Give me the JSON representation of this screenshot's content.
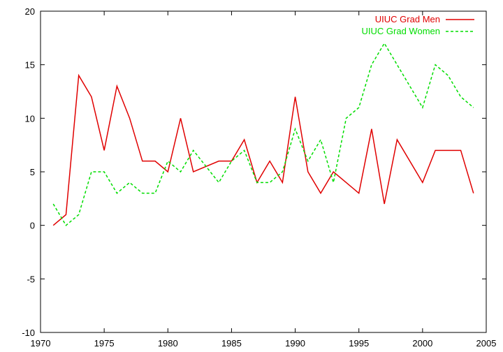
{
  "chart_data": {
    "type": "line",
    "title": "",
    "xlabel": "",
    "ylabel": "",
    "xlim": [
      1970,
      2005
    ],
    "ylim": [
      -10,
      20
    ],
    "xticks": [
      1970,
      1975,
      1980,
      1985,
      1990,
      1995,
      2000,
      2005
    ],
    "yticks": [
      -10,
      -5,
      0,
      5,
      10,
      15,
      20
    ],
    "grid": false,
    "legend_position": "top-right",
    "series": [
      {
        "name": "UIUC Grad Men",
        "color": "#e00000",
        "dash": "solid",
        "points": [
          [
            1971,
            0
          ],
          [
            1972,
            1
          ],
          [
            1973,
            14
          ],
          [
            1974,
            12
          ],
          [
            1975,
            7
          ],
          [
            1976,
            13
          ],
          [
            1977,
            10
          ],
          [
            1978,
            6
          ],
          [
            1979,
            6
          ],
          [
            1980,
            5
          ],
          [
            1981,
            10
          ],
          [
            1982,
            5
          ],
          [
            1984,
            6
          ],
          [
            1985,
            6
          ],
          [
            1986,
            8
          ],
          [
            1987,
            4
          ],
          [
            1988,
            6
          ],
          [
            1989,
            4
          ],
          [
            1990,
            12
          ],
          [
            1991,
            5
          ],
          [
            1992,
            3
          ],
          [
            1993,
            5
          ],
          [
            1995,
            3
          ],
          [
            1996,
            9
          ],
          [
            1997,
            2
          ],
          [
            1998,
            8
          ],
          [
            2000,
            4
          ],
          [
            2001,
            7
          ],
          [
            2003,
            7
          ],
          [
            2004,
            3
          ]
        ]
      },
      {
        "name": "UIUC Grad Women",
        "color": "#00dd00",
        "dash": "dashed",
        "points": [
          [
            1971,
            2
          ],
          [
            1972,
            0
          ],
          [
            1973,
            1
          ],
          [
            1974,
            5
          ],
          [
            1975,
            5
          ],
          [
            1976,
            3
          ],
          [
            1977,
            4
          ],
          [
            1978,
            3
          ],
          [
            1979,
            3
          ],
          [
            1980,
            6
          ],
          [
            1981,
            5
          ],
          [
            1982,
            7
          ],
          [
            1984,
            4
          ],
          [
            1985,
            6
          ],
          [
            1986,
            7
          ],
          [
            1987,
            4
          ],
          [
            1988,
            4
          ],
          [
            1989,
            5
          ],
          [
            1990,
            9
          ],
          [
            1991,
            6
          ],
          [
            1992,
            8
          ],
          [
            1993,
            4
          ],
          [
            1994,
            10
          ],
          [
            1995,
            11
          ],
          [
            1996,
            15
          ],
          [
            1997,
            17
          ],
          [
            2000,
            11
          ],
          [
            2001,
            15
          ],
          [
            2002,
            14
          ],
          [
            2003,
            12
          ],
          [
            2004,
            11
          ]
        ]
      }
    ]
  }
}
